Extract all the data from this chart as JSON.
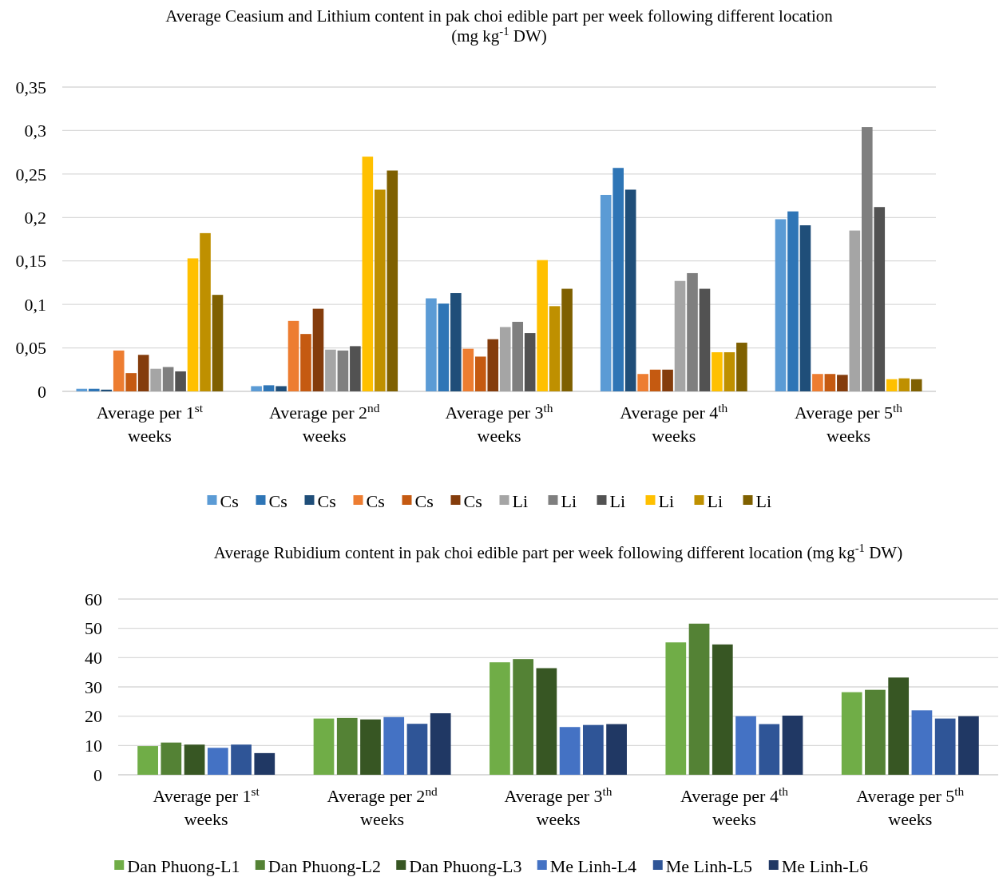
{
  "chart_data": [
    {
      "type": "bar",
      "title": "Average  Ceasium and Lithium content in pak choi edible part per week following different location (mg kg$^{-1}$   DW)",
      "categories": [
        "Average per 1$^{st}$ weeks",
        "Average per 2$^{nd}$ weeks",
        "Average per 3$^{th}$ weeks",
        "Average per 4$^{th}$ weeks",
        "Average per 5$^{th}$ weeks"
      ],
      "series": [
        {
          "name": "Cs",
          "color": "#5b9bd5",
          "values": [
            0.003,
            0.006,
            0.107,
            0.226,
            0.198
          ]
        },
        {
          "name": "Cs",
          "color": "#2e75b6",
          "values": [
            0.003,
            0.007,
            0.101,
            0.257,
            0.207
          ]
        },
        {
          "name": "Cs",
          "color": "#1f4e79",
          "values": [
            0.002,
            0.006,
            0.113,
            0.232,
            0.191
          ]
        },
        {
          "name": "Cs",
          "color": "#ed7d31",
          "values": [
            0.047,
            0.081,
            0.049,
            0.02,
            0.02
          ]
        },
        {
          "name": "Cs",
          "color": "#c55a11",
          "values": [
            0.021,
            0.066,
            0.04,
            0.025,
            0.02
          ]
        },
        {
          "name": "Cs",
          "color": "#843c0c",
          "values": [
            0.042,
            0.095,
            0.06,
            0.025,
            0.019
          ]
        },
        {
          "name": "Li",
          "color": "#a5a5a5",
          "values": [
            0.026,
            0.048,
            0.074,
            0.127,
            0.185
          ]
        },
        {
          "name": "Li",
          "color": "#7f7f7f",
          "values": [
            0.028,
            0.047,
            0.08,
            0.136,
            0.304
          ]
        },
        {
          "name": "Li",
          "color": "#525252",
          "values": [
            0.023,
            0.052,
            0.067,
            0.118,
            0.212
          ]
        },
        {
          "name": "Li",
          "color": "#ffc000",
          "values": [
            0.153,
            0.27,
            0.151,
            0.045,
            0.014
          ]
        },
        {
          "name": "Li",
          "color": "#bf9000",
          "values": [
            0.182,
            0.232,
            0.098,
            0.045,
            0.015
          ]
        },
        {
          "name": "Li",
          "color": "#7f6000",
          "values": [
            0.111,
            0.254,
            0.118,
            0.056,
            0.014
          ]
        }
      ],
      "ylim": [
        0,
        0.35
      ],
      "yticks": [
        0,
        {
          "value": 0.05,
          "label": "0,05"
        },
        {
          "value": 0.1,
          "label": "0,1"
        },
        {
          "value": 0.15,
          "label": "0,15"
        },
        {
          "value": 0.2,
          "label": "0,2"
        },
        {
          "value": 0.25,
          "label": "0,25"
        },
        {
          "value": 0.3,
          "label": "0,3"
        },
        {
          "value": 0.35,
          "label": "0,35"
        }
      ],
      "grid": "y",
      "legend": "bottom"
    },
    {
      "type": "bar",
      "title": "Average  Rubidium content in pak choi edible part per week following different location (mg kg$^{-1}$   DW)",
      "categories": [
        "Average per 1$^{st}$ weeks",
        "Average per 2$^{nd}$ weeks",
        "Average per 3$^{th}$ weeks",
        "Average per 4$^{th}$ weeks",
        "Average per 5$^{th}$ weeks"
      ],
      "series": [
        {
          "name": "Dan Phuong-L1",
          "color": "#70ad47",
          "values": [
            9.8,
            19.2,
            38.4,
            45.2,
            28.2
          ]
        },
        {
          "name": "Dan Phuong-L2",
          "color": "#548235",
          "values": [
            11,
            19.4,
            39.5,
            51.6,
            29
          ]
        },
        {
          "name": "Dan Phuong-L3",
          "color": "#375623",
          "values": [
            10.3,
            18.9,
            36.4,
            44.5,
            33.2
          ]
        },
        {
          "name": "Me Linh-L4",
          "color": "#4472c4",
          "values": [
            9.2,
            19.7,
            16.3,
            20,
            22
          ]
        },
        {
          "name": "Me Linh-L5",
          "color": "#2f5597",
          "values": [
            10.3,
            17.4,
            17,
            17.3,
            19.2
          ]
        },
        {
          "name": "Me Linh-L6",
          "color": "#203864",
          "values": [
            7.4,
            21,
            17.3,
            20.2,
            20
          ]
        }
      ],
      "ylim": [
        0,
        60
      ],
      "yticks": [
        0,
        10,
        20,
        30,
        40,
        50,
        60
      ],
      "grid": "y",
      "legend": "bottom"
    }
  ]
}
